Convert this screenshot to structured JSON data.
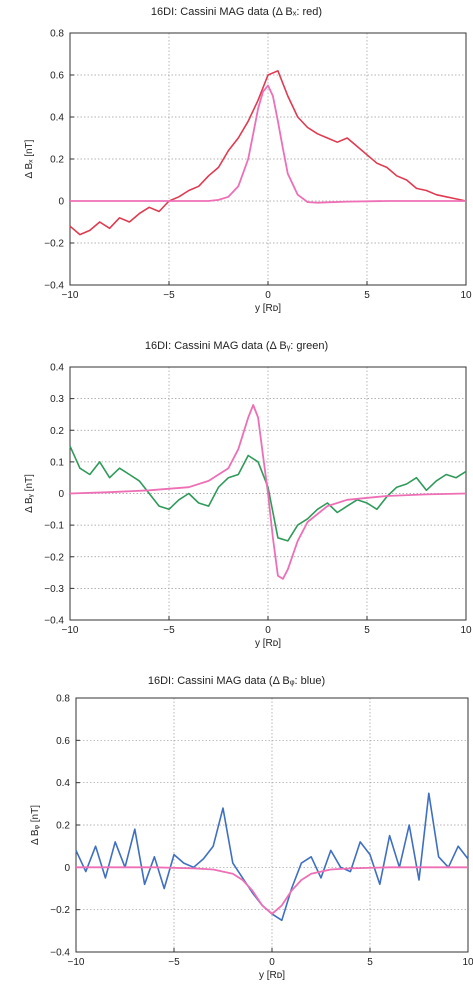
{
  "chart_data": [
    {
      "type": "line",
      "title": "16DI: Cassini MAG data (Δ Bₓ: red)",
      "xlabel": "y [Rᴅ]",
      "ylabel": "Δ Bₓ [nT]",
      "xlim": [
        -10,
        10
      ],
      "ylim": [
        -0.4,
        0.8
      ],
      "xticks": [
        "−10",
        "−5",
        "0",
        "5",
        "10"
      ],
      "yticks": [
        "−0.4",
        "−0.2",
        "0",
        "0.2",
        "0.4",
        "0.6",
        "0.8"
      ],
      "grid": true,
      "series": [
        {
          "color": "#e03a50",
          "x": [
            -10,
            -9.5,
            -9,
            -8.5,
            -8,
            -7.5,
            -7,
            -6.5,
            -6,
            -5.5,
            -5,
            -4.5,
            -4,
            -3.5,
            -3,
            -2.5,
            -2,
            -1.5,
            -1,
            -0.5,
            0,
            0.5,
            1,
            1.5,
            2,
            2.5,
            3,
            3.5,
            4,
            4.5,
            5,
            5.5,
            6,
            6.5,
            7,
            7.5,
            8,
            8.5,
            9,
            9.5,
            10
          ],
          "y": [
            -0.12,
            -0.16,
            -0.14,
            -0.1,
            -0.13,
            -0.08,
            -0.1,
            -0.06,
            -0.03,
            -0.05,
            0.0,
            0.02,
            0.05,
            0.07,
            0.12,
            0.16,
            0.24,
            0.3,
            0.38,
            0.48,
            0.6,
            0.62,
            0.5,
            0.4,
            0.35,
            0.32,
            0.3,
            0.28,
            0.3,
            0.26,
            0.22,
            0.18,
            0.16,
            0.12,
            0.1,
            0.06,
            0.05,
            0.03,
            0.02,
            0.01,
            0.0
          ]
        },
        {
          "color": "#ee6fb5",
          "x": [
            -10,
            -8,
            -6,
            -4,
            -3,
            -2.5,
            -2,
            -1.5,
            -1,
            -0.75,
            -0.5,
            -0.25,
            0,
            0.25,
            0.5,
            0.75,
            1,
            1.5,
            2,
            2.5,
            3,
            4,
            6,
            8,
            10
          ],
          "y": [
            0,
            0,
            0,
            0,
            0,
            0.005,
            0.02,
            0.07,
            0.2,
            0.32,
            0.44,
            0.52,
            0.55,
            0.5,
            0.38,
            0.25,
            0.13,
            0.03,
            -0.005,
            -0.008,
            -0.006,
            -0.003,
            0,
            0,
            0
          ]
        }
      ]
    },
    {
      "type": "line",
      "title": "16DI: Cassini MAG data (Δ Bᵧ: green)",
      "xlabel": "y [Rᴅ]",
      "ylabel": "Δ Bᵧ [nT]",
      "xlim": [
        -10,
        10
      ],
      "ylim": [
        -0.4,
        0.4
      ],
      "xticks": [
        "−10",
        "−5",
        "0",
        "5",
        "10"
      ],
      "yticks": [
        "−0.4",
        "−0.3",
        "−0.2",
        "−0.1",
        "0",
        "0.1",
        "0.2",
        "0.3",
        "0.4"
      ],
      "grid": true,
      "series": [
        {
          "color": "#2f9a5a",
          "x": [
            -10,
            -9.5,
            -9,
            -8.5,
            -8,
            -7.5,
            -7,
            -6.5,
            -6,
            -5.5,
            -5,
            -4.5,
            -4,
            -3.5,
            -3,
            -2.5,
            -2,
            -1.5,
            -1,
            -0.5,
            0,
            0.5,
            1,
            1.5,
            2,
            2.5,
            3,
            3.5,
            4,
            4.5,
            5,
            5.5,
            6,
            6.5,
            7,
            7.5,
            8,
            8.5,
            9,
            9.5,
            10
          ],
          "y": [
            0.15,
            0.08,
            0.06,
            0.1,
            0.05,
            0.08,
            0.06,
            0.04,
            0.0,
            -0.04,
            -0.05,
            -0.02,
            0.0,
            -0.03,
            -0.04,
            0.02,
            0.05,
            0.06,
            0.12,
            0.1,
            0.02,
            -0.14,
            -0.15,
            -0.1,
            -0.08,
            -0.05,
            -0.03,
            -0.06,
            -0.04,
            -0.02,
            -0.03,
            -0.05,
            -0.01,
            0.02,
            0.03,
            0.05,
            0.01,
            0.04,
            0.06,
            0.05,
            0.07
          ]
        },
        {
          "color": "#ee6fb5",
          "x": [
            -10,
            -8,
            -6,
            -4,
            -3,
            -2,
            -1.5,
            -1,
            -0.75,
            -0.5,
            -0.25,
            0,
            0.25,
            0.5,
            0.75,
            1,
            1.5,
            2,
            3,
            4,
            6,
            8,
            10
          ],
          "y": [
            0,
            0.004,
            0.01,
            0.02,
            0.04,
            0.08,
            0.14,
            0.24,
            0.28,
            0.24,
            0.12,
            0,
            -0.14,
            -0.26,
            -0.27,
            -0.24,
            -0.15,
            -0.09,
            -0.04,
            -0.02,
            -0.008,
            -0.003,
            0
          ]
        }
      ]
    },
    {
      "type": "line",
      "title": "16DI: Cassini MAG data (Δ Bᵩ: blue)",
      "xlabel": "y [Rᴅ]",
      "ylabel": "Δ Bᵩ [nT]",
      "xlim": [
        -10,
        10
      ],
      "ylim": [
        -0.4,
        0.8
      ],
      "xticks": [
        "−10",
        "−5",
        "0",
        "5",
        "10"
      ],
      "yticks": [
        "−0.4",
        "−0.2",
        "0",
        "0.2",
        "0.4",
        "0.6",
        "0.8"
      ],
      "grid": true,
      "series": [
        {
          "color": "#3f6fc2",
          "x": [
            -10,
            -9.5,
            -9,
            -8.5,
            -8,
            -7.5,
            -7,
            -6.5,
            -6,
            -5.5,
            -5,
            -4.5,
            -4,
            -3.5,
            -3,
            -2.5,
            -2,
            -1.5,
            -1,
            -0.5,
            0,
            0.5,
            1,
            1.5,
            2,
            2.5,
            3,
            3.5,
            4,
            4.5,
            5,
            5.5,
            6,
            6.5,
            7,
            7.5,
            8,
            8.5,
            9,
            9.5,
            10
          ],
          "y": [
            0.08,
            -0.02,
            0.1,
            -0.05,
            0.12,
            0.0,
            0.18,
            -0.08,
            0.05,
            -0.1,
            0.06,
            0.02,
            0.0,
            0.04,
            0.1,
            0.28,
            0.02,
            -0.05,
            -0.12,
            -0.18,
            -0.22,
            -0.25,
            -0.1,
            0.02,
            0.05,
            -0.05,
            0.08,
            0.0,
            -0.02,
            0.12,
            0.06,
            -0.08,
            0.15,
            0.0,
            0.2,
            -0.06,
            0.35,
            0.05,
            0.0,
            0.1,
            0.04
          ]
        },
        {
          "color": "#ee6fb5",
          "x": [
            -10,
            -8,
            -6,
            -4,
            -3,
            -2,
            -1.5,
            -1,
            -0.5,
            0,
            0.5,
            1,
            1.5,
            2,
            3,
            4,
            6,
            8,
            10
          ],
          "y": [
            0,
            0,
            0,
            -0.005,
            -0.01,
            -0.03,
            -0.06,
            -0.11,
            -0.18,
            -0.22,
            -0.18,
            -0.11,
            -0.06,
            -0.03,
            -0.01,
            -0.005,
            0,
            0,
            0
          ]
        }
      ]
    }
  ]
}
